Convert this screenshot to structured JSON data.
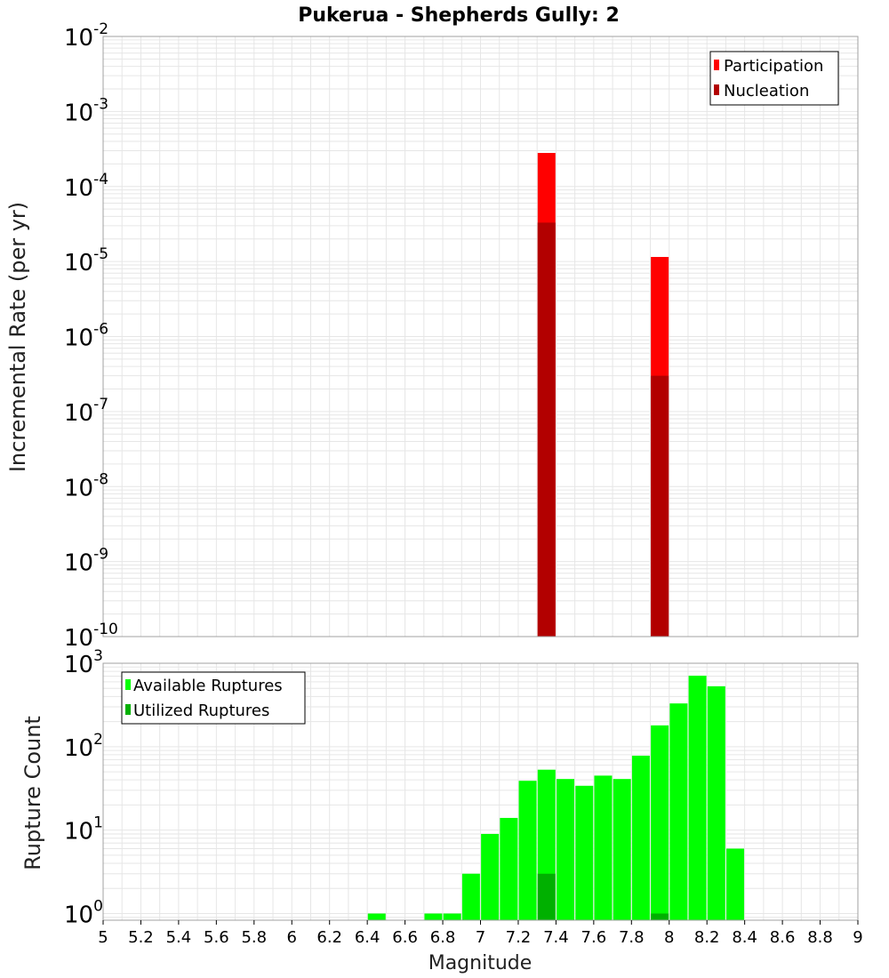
{
  "title": "Pukerua - Shepherds Gully: 2",
  "chart_data": [
    {
      "type": "bar",
      "name": "rate-panel",
      "ylabel": "Incremental Rate (per yr)",
      "yscale": "log",
      "ylim_exp": [
        -10,
        -2
      ],
      "y_ticks": [
        {
          "base": "10",
          "exp": "-2"
        },
        {
          "base": "10",
          "exp": "-3"
        },
        {
          "base": "10",
          "exp": "-4"
        },
        {
          "base": "10",
          "exp": "-5"
        },
        {
          "base": "10",
          "exp": "-6"
        },
        {
          "base": "10",
          "exp": "-7"
        },
        {
          "base": "10",
          "exp": "-8"
        },
        {
          "base": "10",
          "exp": "-9"
        },
        {
          "base": "10",
          "exp": "-10"
        }
      ],
      "legend_position": "top-right",
      "series": [
        {
          "name": "Participation",
          "color": "#ff0000",
          "x": [
            7.35,
            7.95
          ],
          "values": [
            0.00028,
            1.15e-05
          ]
        },
        {
          "name": "Nucleation",
          "color": "#b20000",
          "x": [
            7.35,
            7.95
          ],
          "values": [
            3.3e-05,
            3e-07
          ]
        }
      ]
    },
    {
      "type": "bar",
      "name": "count-panel",
      "ylabel": "Rupture Count",
      "yscale": "log",
      "ylim_exp": [
        -0.08,
        3
      ],
      "y_ticks": [
        {
          "base": "10",
          "exp": "3"
        },
        {
          "base": "10",
          "exp": "2"
        },
        {
          "base": "10",
          "exp": "1"
        },
        {
          "base": "10",
          "exp": "0"
        }
      ],
      "legend_position": "top-left",
      "series": [
        {
          "name": "Available Ruptures",
          "color": "#00ff00",
          "x": [
            6.45,
            6.75,
            6.85,
            6.95,
            7.05,
            7.15,
            7.25,
            7.35,
            7.45,
            7.55,
            7.65,
            7.75,
            7.85,
            7.95,
            8.05,
            8.15,
            8.25,
            8.35
          ],
          "values": [
            1,
            1,
            1,
            3,
            9,
            14,
            39,
            53,
            41,
            34,
            45,
            41,
            78,
            180,
            330,
            710,
            530,
            6
          ]
        },
        {
          "name": "Utilized Ruptures",
          "color": "#00b000",
          "x": [
            7.35,
            7.95
          ],
          "values": [
            3,
            1
          ]
        }
      ]
    }
  ],
  "x_axis": {
    "label": "Magnitude",
    "min": 5,
    "max": 9,
    "ticks": [
      "5",
      "5.2",
      "5.4",
      "5.6",
      "5.8",
      "6",
      "6.2",
      "6.4",
      "6.6",
      "6.8",
      "7",
      "7.2",
      "7.4",
      "7.6",
      "7.8",
      "8",
      "8.2",
      "8.4",
      "8.6",
      "8.8",
      "9"
    ]
  },
  "colors": {
    "grid": "#e6e6e6",
    "frame": "#a0a0a0"
  }
}
